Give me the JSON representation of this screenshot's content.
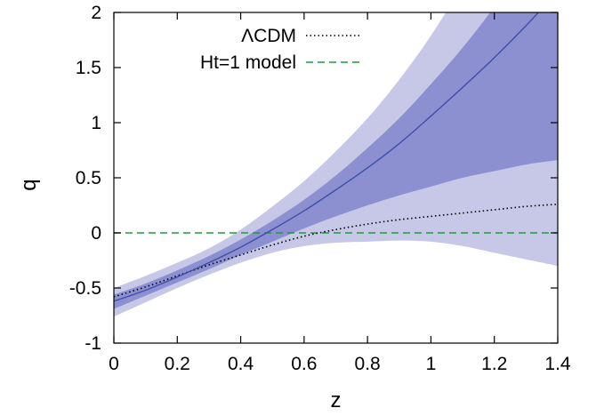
{
  "chart_data": {
    "type": "line",
    "title": "",
    "xlabel": "z",
    "ylabel": "q",
    "xlim": [
      0,
      1.4
    ],
    "ylim": [
      -1,
      2
    ],
    "x_ticks": [
      "0",
      "0.2",
      "0.4",
      "0.6",
      "0.8",
      "1",
      "1.2",
      "1.4"
    ],
    "y_ticks": [
      "-1",
      "-0.5",
      "0",
      "0.5",
      "1",
      "1.5",
      "2"
    ],
    "x_tick_values": [
      0,
      0.2,
      0.4,
      0.6,
      0.8,
      1.0,
      1.2,
      1.4
    ],
    "y_tick_values": [
      -1,
      -0.5,
      0,
      0.5,
      1,
      1.5,
      2
    ],
    "grid": false,
    "legend_position": "top-left",
    "x": [
      0,
      0.1,
      0.2,
      0.3,
      0.4,
      0.5,
      0.6,
      0.7,
      0.8,
      0.9,
      1.0,
      1.1,
      1.2,
      1.3,
      1.4
    ],
    "series": [
      {
        "name": "",
        "role": "best-fit",
        "color": "#3f4fa8",
        "style": "solid",
        "values": [
          -0.62,
          -0.52,
          -0.4,
          -0.27,
          -0.13,
          0.03,
          0.2,
          0.39,
          0.59,
          0.81,
          1.06,
          1.32,
          1.59,
          1.88,
          2.19
        ]
      },
      {
        "name": "ΛCDM",
        "role": "reference",
        "color": "#000000",
        "style": "dotted",
        "values": [
          -0.58,
          -0.49,
          -0.39,
          -0.29,
          -0.2,
          -0.11,
          -0.03,
          0.03,
          0.08,
          0.12,
          0.15,
          0.18,
          0.21,
          0.24,
          0.26
        ]
      },
      {
        "name": "Ht=1 model",
        "role": "reference",
        "color": "#1f9a3c",
        "style": "dashed",
        "values": [
          0,
          0,
          0,
          0,
          0,
          0,
          0,
          0,
          0,
          0,
          0,
          0,
          0,
          0,
          0
        ]
      }
    ],
    "bands": [
      {
        "level": "outer",
        "color": "#c7c8e8",
        "lower": [
          -0.76,
          -0.63,
          -0.5,
          -0.38,
          -0.27,
          -0.18,
          -0.12,
          -0.09,
          -0.08,
          -0.07,
          -0.08,
          -0.12,
          -0.18,
          -0.24,
          -0.3
        ],
        "upper": [
          -0.5,
          -0.39,
          -0.27,
          -0.14,
          0.03,
          0.24,
          0.47,
          0.74,
          1.04,
          1.39,
          1.79,
          2.25,
          2.75,
          3.3,
          3.9
        ]
      },
      {
        "level": "inner",
        "color": "#8c8fd0",
        "lower": [
          -0.69,
          -0.57,
          -0.45,
          -0.33,
          -0.2,
          -0.08,
          0.04,
          0.15,
          0.25,
          0.34,
          0.42,
          0.5,
          0.56,
          0.62,
          0.66
        ],
        "upper": [
          -0.56,
          -0.46,
          -0.34,
          -0.21,
          -0.06,
          0.11,
          0.3,
          0.52,
          0.77,
          1.04,
          1.35,
          1.68,
          2.05,
          2.45,
          2.9
        ]
      }
    ]
  }
}
